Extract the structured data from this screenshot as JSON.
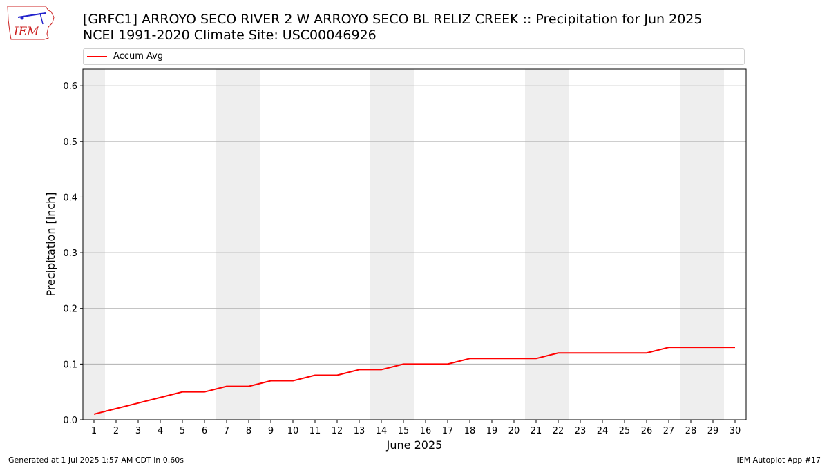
{
  "header": {
    "title_line1": "[GRFC1] ARROYO SECO RIVER 2 W ARROYO SECO BL RELIZ CREEK :: Precipitation for Jun 2025",
    "title_line2": "NCEI 1991-2020 Climate Site: USC00046926",
    "logo_text": "IEM"
  },
  "footer": {
    "left": "Generated at 1 Jul 2025 1:57 AM CDT in 0.60s",
    "right": "IEM Autoplot App #17"
  },
  "colors": {
    "series": "#ff0000",
    "weekend": "#eeeeee",
    "grid": "#b0b0b0",
    "logo": "#cc2222"
  },
  "chart_data": {
    "type": "line",
    "xlabel": "June 2025",
    "ylabel": "Precipitation [inch]",
    "ylim": [
      0,
      0.63
    ],
    "xlim": [
      0.5,
      30.5
    ],
    "yticks": [
      0.0,
      0.1,
      0.2,
      0.3,
      0.4,
      0.5,
      0.6
    ],
    "ytick_labels": [
      "0.0",
      "0.1",
      "0.2",
      "0.3",
      "0.4",
      "0.5",
      "0.6"
    ],
    "x": [
      1,
      2,
      3,
      4,
      5,
      6,
      7,
      8,
      9,
      10,
      11,
      12,
      13,
      14,
      15,
      16,
      17,
      18,
      19,
      20,
      21,
      22,
      23,
      24,
      25,
      26,
      27,
      28,
      29,
      30
    ],
    "xtick_labels": [
      "1",
      "2",
      "3",
      "4",
      "5",
      "6",
      "7",
      "8",
      "9",
      "10",
      "11",
      "12",
      "13",
      "14",
      "15",
      "16",
      "17",
      "18",
      "19",
      "20",
      "21",
      "22",
      "23",
      "24",
      "25",
      "26",
      "27",
      "28",
      "29",
      "30"
    ],
    "weekend_days": [
      1,
      7,
      8,
      14,
      15,
      21,
      22,
      28,
      29
    ],
    "grid": "horizontal",
    "legend_position": "top",
    "series": [
      {
        "name": "Accum Avg",
        "values": [
          0.01,
          0.02,
          0.03,
          0.04,
          0.05,
          0.05,
          0.06,
          0.06,
          0.07,
          0.07,
          0.08,
          0.08,
          0.09,
          0.09,
          0.1,
          0.1,
          0.1,
          0.11,
          0.11,
          0.11,
          0.11,
          0.12,
          0.12,
          0.12,
          0.12,
          0.12,
          0.13,
          0.13,
          0.13,
          0.13
        ]
      }
    ]
  }
}
